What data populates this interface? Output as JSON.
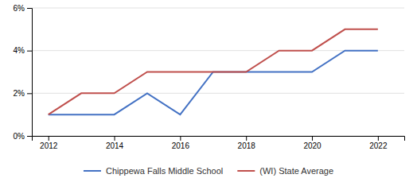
{
  "chart_data": {
    "type": "line",
    "x": [
      2012,
      2013,
      2014,
      2015,
      2016,
      2017,
      2018,
      2019,
      2020,
      2021,
      2022
    ],
    "series": [
      {
        "name": "Chippewa Falls Middle School",
        "color": "#4472c4",
        "values": [
          1.0,
          1.0,
          1.0,
          2.0,
          1.0,
          3.0,
          3.0,
          3.0,
          3.0,
          4.0,
          4.0
        ]
      },
      {
        "name": "(WI) State Average",
        "color": "#c0504d",
        "values": [
          1.0,
          2.0,
          2.0,
          3.0,
          3.0,
          3.0,
          3.0,
          4.0,
          4.0,
          5.0,
          5.0
        ]
      }
    ],
    "xlim": [
      2011.5,
      2022.8
    ],
    "xticks": [
      2012,
      2014,
      2016,
      2018,
      2020,
      2022
    ],
    "ylim": [
      0,
      6
    ],
    "yticks": [
      {
        "value": 0,
        "label": "0%"
      },
      {
        "value": 2,
        "label": "2%"
      },
      {
        "value": 4,
        "label": "4%"
      },
      {
        "value": 6,
        "label": "6%"
      }
    ],
    "grid": "y",
    "legend": "bottom"
  }
}
